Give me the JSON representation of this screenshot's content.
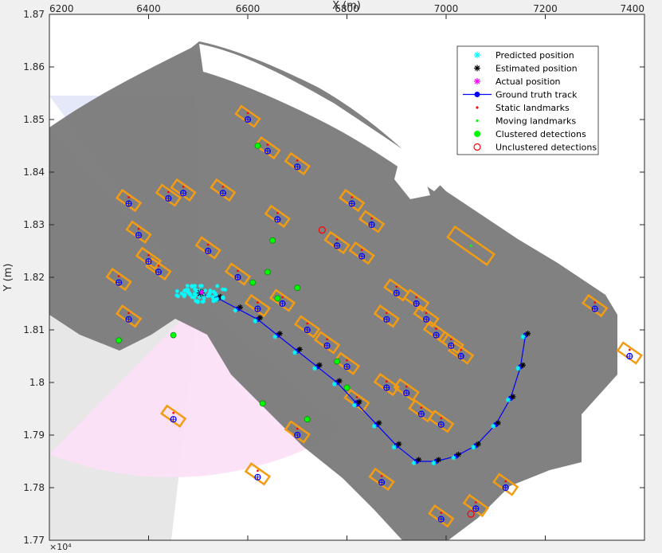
{
  "chart_data": {
    "type": "scatter",
    "title": "",
    "xlabel": "X (m)",
    "ylabel": "Y (m)",
    "x_ticks": [
      "6200",
      "6400",
      "6600",
      "6800",
      "7000",
      "7200",
      "7400"
    ],
    "y_ticks": [
      "1.77",
      "1.78",
      "1.79",
      "1.8",
      "1.81",
      "1.82",
      "1.83",
      "1.84",
      "1.85",
      "1.86",
      "1.87"
    ],
    "y_exponent_label": "×10⁴",
    "x_axis_position": "top",
    "xlim": [
      6200,
      7400
    ],
    "ylim": [
      17700,
      18700
    ],
    "grid": false,
    "legend_position": "top-right",
    "legend": [
      {
        "label": "Predicted position",
        "marker": "asterisk",
        "color": "#00ffff"
      },
      {
        "label": "Estimated position",
        "marker": "asterisk",
        "color": "#000000"
      },
      {
        "label": "Actual position",
        "marker": "asterisk",
        "color": "#ff00ff"
      },
      {
        "label": "Ground truth track",
        "marker": "line-dot",
        "color": "#0000ff"
      },
      {
        "label": "Static landmarks",
        "marker": "dot-small",
        "color": "#ff0000"
      },
      {
        "label": "Moving landmarks",
        "marker": "dot-small",
        "color": "#00ff00"
      },
      {
        "label": "Clustered detections",
        "marker": "dot",
        "color": "#00ff00"
      },
      {
        "label": "Unclustered detections",
        "marker": "circle",
        "color": "#ff0000"
      }
    ],
    "ground_truth_track": {
      "x": [
        6500,
        6540,
        6580,
        6620,
        6660,
        6700,
        6740,
        6780,
        6820,
        6860,
        6900,
        6940,
        6980,
        7020,
        7060,
        7100,
        7130,
        7150,
        7160
      ],
      "y": [
        18170,
        18160,
        18140,
        18120,
        18090,
        18060,
        18030,
        18000,
        17960,
        17920,
        17880,
        17850,
        17850,
        17860,
        17880,
        17920,
        17970,
        18030,
        18090
      ]
    },
    "vehicle_position": {
      "x": 6505,
      "y": 18170
    },
    "static_landmarks": {
      "x": [
        6360,
        6380,
        6400,
        6440,
        6470,
        6550,
        6600,
        6640,
        6700,
        6660,
        6780,
        6810,
        6850,
        6830,
        6900,
        6940,
        6960,
        6980,
        7010,
        7030,
        6340,
        6420,
        6360,
        6520,
        6580,
        6620,
        6670,
        6720,
        6760,
        6800,
        6880,
        6920,
        6950,
        6990,
        6870,
        6450,
        6700,
        6620,
        6820,
        6880,
        7300,
        7370,
        7120,
        7060,
        6990
      ],
      "y": [
        18340,
        18280,
        18230,
        18350,
        18360,
        18360,
        18500,
        18440,
        18410,
        18310,
        18260,
        18340,
        18300,
        18240,
        18170,
        18150,
        18120,
        18090,
        18070,
        18050,
        18190,
        18210,
        18120,
        18250,
        18200,
        18140,
        18150,
        18100,
        18070,
        18030,
        18120,
        17980,
        17940,
        17920,
        17810,
        17930,
        17900,
        17820,
        17960,
        17990,
        18140,
        18050,
        17800,
        17760,
        17740
      ]
    },
    "moving_landmarks": {
      "x": [
        7050
      ],
      "y": [
        18260
      ]
    },
    "clustered_detections": {
      "x": [
        6340,
        6450,
        6650,
        6640,
        6700,
        6660,
        6610,
        6720,
        6780,
        6800,
        6630,
        6620
      ],
      "y": [
        18080,
        18090,
        18270,
        18210,
        18180,
        18160,
        18190,
        17930,
        18040,
        17990,
        17960,
        18450
      ]
    },
    "unclustered_detections": {
      "x": [
        6750,
        7050
      ],
      "y": [
        18290,
        17750
      ]
    }
  }
}
